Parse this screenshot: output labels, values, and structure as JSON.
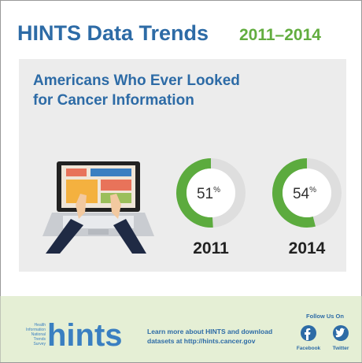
{
  "header": {
    "title": "HINTS Data Trends",
    "years": "2011–2014"
  },
  "chart_data": {
    "type": "donut",
    "title": [
      "Americans Who Ever Looked",
      "for Cancer Information"
    ],
    "categories": [
      "2011",
      "2014"
    ],
    "values": [
      51,
      54
    ],
    "unit": "%",
    "ylim": [
      0,
      100
    ],
    "color": "#5cab3e",
    "track_color": "#dedede"
  },
  "footer": {
    "logo": "hints",
    "survey": [
      "Health",
      "Information",
      "National",
      "Trends",
      "Survey"
    ],
    "learn_more": [
      "Learn more about HINTS and download",
      "datasets at http://hints.cancer.gov"
    ],
    "follow": "Follow Us On",
    "social": [
      "Facebook",
      "Twitter"
    ]
  }
}
